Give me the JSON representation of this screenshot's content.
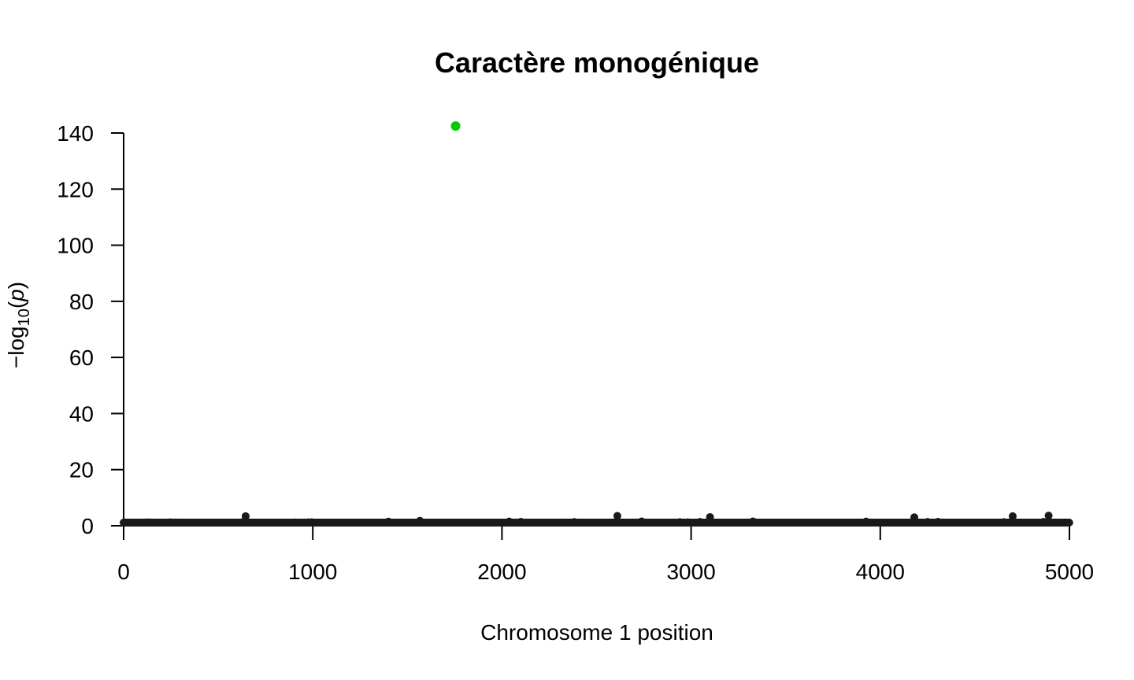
{
  "chart_data": {
    "type": "scatter",
    "title": "Caractère monogénique",
    "xlabel": "Chromosome 1 position",
    "ylabel": {
      "prefix": "−log",
      "subscript": "10",
      "open": "(",
      "var": "p",
      "close": ")"
    },
    "xlim": [
      0,
      5000
    ],
    "ylim": [
      0,
      140
    ],
    "xticks": [
      0,
      1000,
      2000,
      3000,
      4000,
      5000
    ],
    "yticks": [
      0,
      20,
      40,
      60,
      80,
      100,
      120,
      140
    ],
    "series": [
      {
        "n_points": 5000,
        "color": "#1a1a1a",
        "typical_range": [
          0,
          3.5
        ],
        "notable_points": [
          {
            "x": 645,
            "y": 3.4
          },
          {
            "x": 2610,
            "y": 3.5
          },
          {
            "x": 3100,
            "y": 3.1
          },
          {
            "x": 4180,
            "y": 3.0
          },
          {
            "x": 4700,
            "y": 3.4
          },
          {
            "x": 4890,
            "y": 3.6
          }
        ]
      },
      {
        "color": "#00cc00",
        "points": [
          {
            "x": 1755,
            "y": 142.5
          }
        ]
      }
    ],
    "grid": false,
    "legend": "none"
  }
}
